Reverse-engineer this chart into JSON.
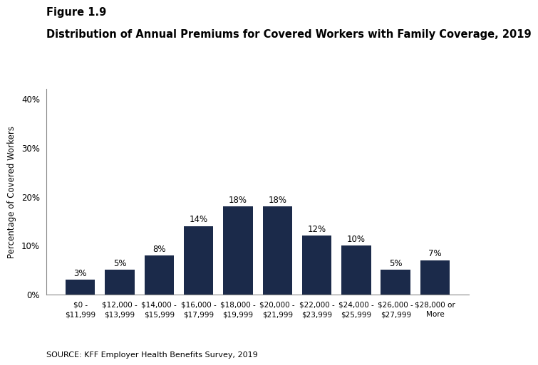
{
  "figure_label": "Figure 1.9",
  "title": "Distribution of Annual Premiums for Covered Workers with Family Coverage, 2019",
  "categories": [
    "$0 -\n$11,999",
    "$12,000 -\n$13,999",
    "$14,000 -\n$15,999",
    "$16,000 -\n$17,999",
    "$18,000 -\n$19,999",
    "$20,000 -\n$21,999",
    "$22,000 -\n$23,999",
    "$24,000 -\n$25,999",
    "$26,000 -\n$27,999",
    "$28,000 or\nMore"
  ],
  "values": [
    3,
    5,
    8,
    14,
    18,
    18,
    12,
    10,
    5,
    7
  ],
  "bar_color": "#1b2a4a",
  "ylabel": "Percentage of Covered Workers",
  "ylim": [
    0,
    42
  ],
  "yticks": [
    0,
    10,
    20,
    30,
    40
  ],
  "source": "SOURCE: KFF Employer Health Benefits Survey, 2019",
  "bar_label_fontsize": 8.5,
  "title_fontsize": 10.5,
  "figure_label_fontsize": 10.5,
  "ylabel_fontsize": 8.5,
  "xlabel_fontsize": 7.5,
  "source_fontsize": 8,
  "background_color": "#ffffff",
  "tick_color": "#888888",
  "spine_color": "#888888"
}
